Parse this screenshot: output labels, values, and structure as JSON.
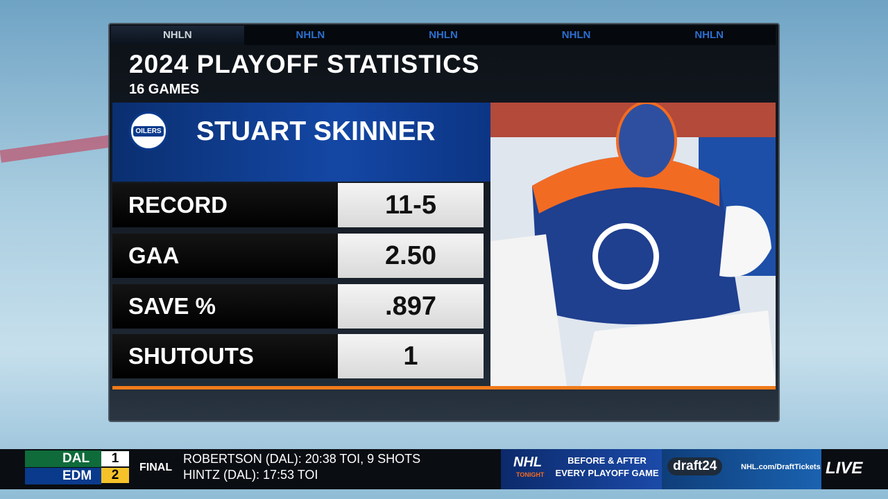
{
  "header": {
    "tabs": [
      "NHLN",
      "NHLN",
      "NHLN",
      "NHLN",
      "NHLN"
    ],
    "title": "2024 PLAYOFF STATISTICS",
    "subtitle": "16 GAMES"
  },
  "player": {
    "name": "STUART SKINNER",
    "logo_text": "OILERS"
  },
  "table": {
    "rows": [
      [
        "RECORD",
        "11-5"
      ],
      [
        "GAA",
        "2.50"
      ],
      [
        "SAVE %",
        ".897"
      ],
      [
        "SHUTOUTS",
        "1"
      ]
    ]
  },
  "ticker": {
    "teams": [
      {
        "abbr": "DAL",
        "score": "1"
      },
      {
        "abbr": "EDM",
        "score": "2"
      }
    ],
    "status": "FINAL",
    "lines": [
      "ROBERTSON (DAL): 20:38 TOI, 9 SHOTS",
      "HINTZ (DAL): 17:53 TOI"
    ],
    "promo": {
      "brand": "NHL",
      "brand_sub": "TONIGHT",
      "line1": "BEFORE & AFTER",
      "line2": "EVERY PLAYOFF GAME",
      "draft": "draft24",
      "url": "NHL.com/DraftTickets",
      "live": "LIVE"
    }
  }
}
